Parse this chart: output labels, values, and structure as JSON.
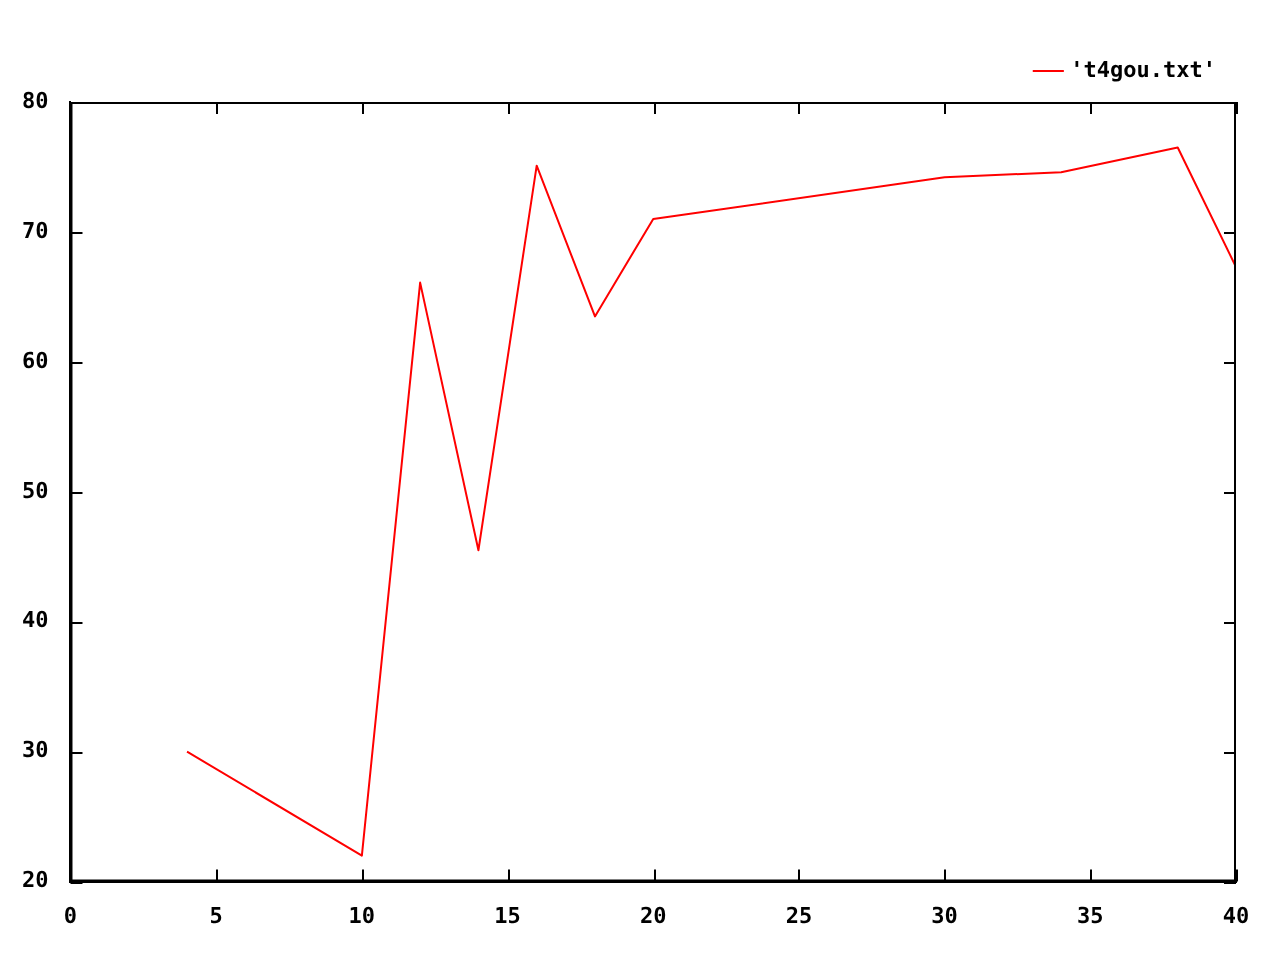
{
  "chart_data": {
    "type": "line",
    "x": [
      4,
      10,
      12,
      14,
      16,
      18,
      20,
      30,
      34,
      38,
      40
    ],
    "series": [
      {
        "name": "'t4gou.txt'",
        "color": "#ff0000",
        "values": [
          30,
          22,
          66.1,
          45.5,
          75.1,
          63.5,
          71.0,
          74.2,
          74.6,
          76.5,
          67.3
        ]
      }
    ],
    "xlim": [
      0,
      40
    ],
    "xticks": [
      0,
      5,
      10,
      15,
      20,
      25,
      30,
      35,
      40
    ],
    "ylim": [
      20,
      80
    ],
    "yticks": [
      20,
      30,
      40,
      50,
      60,
      70,
      80
    ],
    "grid": false,
    "legend": "top right",
    "marker": "none",
    "line_style": "solid"
  }
}
